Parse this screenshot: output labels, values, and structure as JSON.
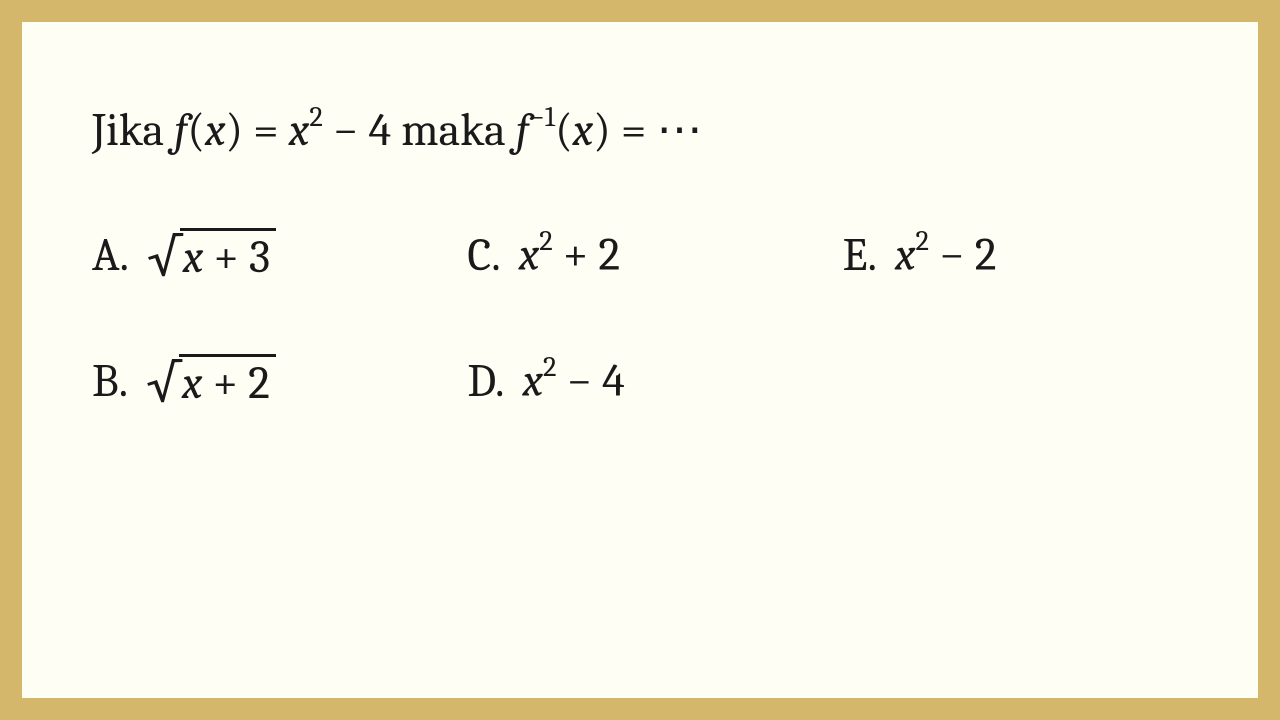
{
  "colors": {
    "border": "#d4b76a",
    "background": "#fefef5",
    "text": "#1a1a1a"
  },
  "question": {
    "prefix": "Jika ",
    "func_f": "f",
    "open_paren": "(",
    "var_x": "x",
    "close_paren": ")",
    "eq1": " = ",
    "x2_var": "x",
    "x2_exp": "2",
    "minus4": " − 4",
    "mid": " maka ",
    "func_f2": "f",
    "inv_exp": "−1",
    "open_paren2": "(",
    "var_x2": "x",
    "close_paren2": ")",
    "eq2": " = ",
    "dots": "⋯"
  },
  "options": {
    "A": {
      "label": "A.",
      "sqrt_x": "x",
      "sqrt_rest": " + 3"
    },
    "B": {
      "label": "B.",
      "sqrt_x": "x",
      "sqrt_rest": " + 2"
    },
    "C": {
      "label": "C.",
      "x_var": "x",
      "x_exp": "2",
      "rest": " + 2"
    },
    "D": {
      "label": "D.",
      "x_var": "x",
      "x_exp": "2",
      "rest": " − 4"
    },
    "E": {
      "label": "E.",
      "x_var": "x",
      "x_exp": "2",
      "rest": " − 2"
    }
  }
}
